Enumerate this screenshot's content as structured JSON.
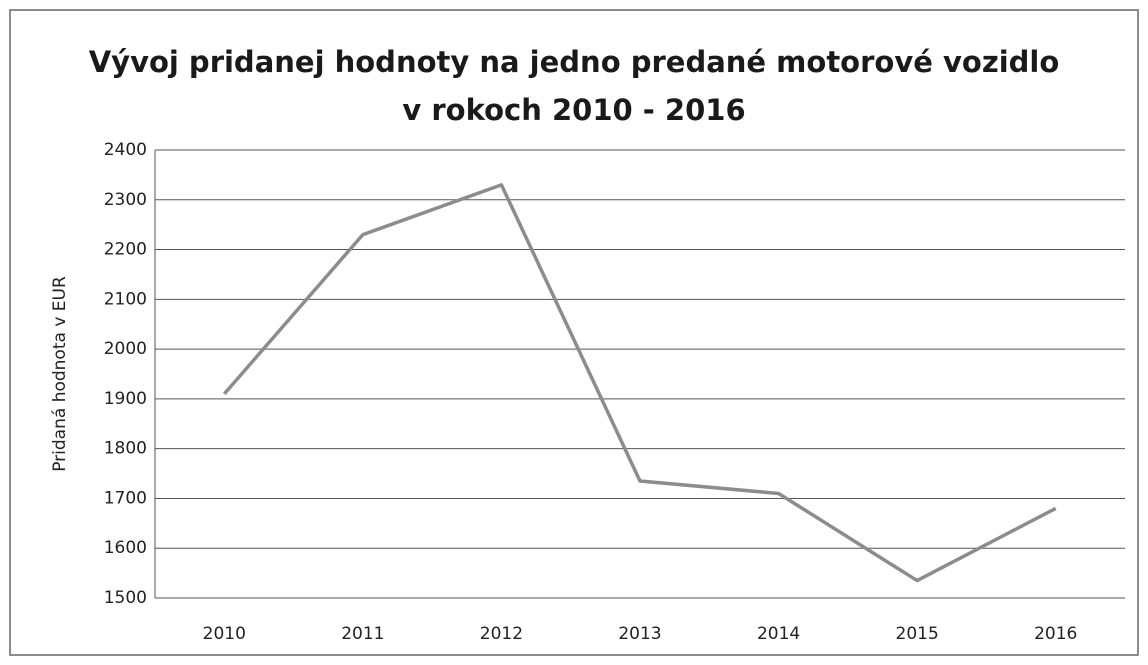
{
  "chart_data": {
    "type": "line",
    "title": "Vývoj pridanej hodnoty na jedno predané motorové vozidlo v rokoch 2010 - 2016",
    "y_label": "Pridaná hodnota v EUR",
    "categories": [
      "2010",
      "2011",
      "2012",
      "2013",
      "2014",
      "2015",
      "2016"
    ],
    "values": [
      1910,
      2230,
      2330,
      1735,
      1710,
      1535,
      1680
    ],
    "color": "#8c8c8c",
    "ylim": [
      1500,
      2400
    ],
    "yticks": [
      1500,
      1600,
      1700,
      1800,
      1900,
      2000,
      2100,
      2200,
      2300,
      2400
    ],
    "grid": true
  }
}
